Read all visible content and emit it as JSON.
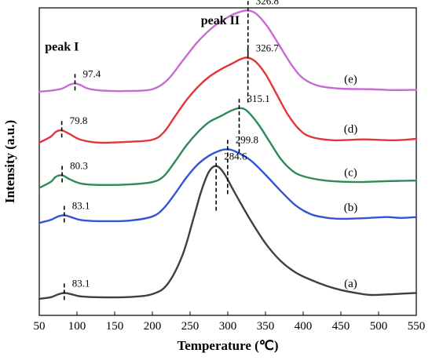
{
  "chart_data": {
    "type": "line",
    "xlabel": "Temperature (℃)",
    "ylabel": "Intensity (a.u.)",
    "xlim": [
      50,
      550
    ],
    "xticks": [
      50,
      100,
      150,
      200,
      250,
      300,
      350,
      400,
      450,
      500,
      550
    ],
    "ylim": [
      0,
      100
    ],
    "yticks": false,
    "grid": false,
    "peak_group_labels": [
      {
        "text": "peak I",
        "x": 80,
        "y": 88
      },
      {
        "text": "peak II",
        "x": 290,
        "y": 97
      }
    ],
    "series": [
      {
        "name": "(a)",
        "color": "#3f3f3f",
        "baseline": 4,
        "points": [
          [
            50,
            3
          ],
          [
            65,
            3.5
          ],
          [
            75,
            4.5
          ],
          [
            83.1,
            5
          ],
          [
            92,
            4.6
          ],
          [
            105,
            3.8
          ],
          [
            130,
            3.5
          ],
          [
            170,
            3.6
          ],
          [
            200,
            4.6
          ],
          [
            220,
            8
          ],
          [
            240,
            18
          ],
          [
            255,
            31
          ],
          [
            265,
            40
          ],
          [
            275,
            46.5
          ],
          [
            284.6,
            48.5
          ],
          [
            295,
            46
          ],
          [
            310,
            39
          ],
          [
            330,
            30
          ],
          [
            350,
            22
          ],
          [
            370,
            16
          ],
          [
            390,
            12
          ],
          [
            410,
            9.5
          ],
          [
            430,
            7.5
          ],
          [
            450,
            6
          ],
          [
            470,
            5
          ],
          [
            490,
            4.3
          ],
          [
            520,
            4.6
          ],
          [
            550,
            5
          ]
        ],
        "peaks": [
          {
            "label": "83.1",
            "x": 83.1
          },
          {
            "label": "284.6",
            "x": 284.6
          }
        ]
      },
      {
        "name": "(b)",
        "color": "#3353d6",
        "baseline": 30,
        "points": [
          [
            50,
            29
          ],
          [
            65,
            30
          ],
          [
            75,
            31.2
          ],
          [
            83.1,
            31.6
          ],
          [
            92,
            31
          ],
          [
            105,
            30
          ],
          [
            130,
            29.6
          ],
          [
            170,
            29.8
          ],
          [
            200,
            31.2
          ],
          [
            215,
            34
          ],
          [
            230,
            39
          ],
          [
            245,
            44.5
          ],
          [
            260,
            49
          ],
          [
            275,
            52
          ],
          [
            290,
            53.8
          ],
          [
            299.8,
            54.2
          ],
          [
            310,
            53.5
          ],
          [
            330,
            50.5
          ],
          [
            350,
            45.5
          ],
          [
            370,
            40
          ],
          [
            390,
            35
          ],
          [
            410,
            32
          ],
          [
            430,
            30.8
          ],
          [
            450,
            30.4
          ],
          [
            480,
            30.6
          ],
          [
            510,
            31
          ],
          [
            530,
            30.7
          ],
          [
            550,
            31
          ]
        ],
        "peaks": [
          {
            "label": "83.1",
            "x": 83.1
          },
          {
            "label": "299.8",
            "x": 299.8
          }
        ]
      },
      {
        "name": "(c)",
        "color": "#2e8a58",
        "baseline": 42,
        "points": [
          [
            50,
            41
          ],
          [
            65,
            43
          ],
          [
            72,
            44.8
          ],
          [
            80.3,
            45.3
          ],
          [
            90,
            44
          ],
          [
            105,
            42.5
          ],
          [
            130,
            42
          ],
          [
            170,
            42.2
          ],
          [
            200,
            43
          ],
          [
            215,
            45
          ],
          [
            230,
            50
          ],
          [
            245,
            55.5
          ],
          [
            260,
            60
          ],
          [
            275,
            63.5
          ],
          [
            290,
            65.5
          ],
          [
            305,
            67.5
          ],
          [
            315.1,
            68.3
          ],
          [
            325,
            67.5
          ],
          [
            340,
            63
          ],
          [
            355,
            57
          ],
          [
            370,
            51
          ],
          [
            385,
            47
          ],
          [
            400,
            45
          ],
          [
            430,
            43.5
          ],
          [
            470,
            43
          ],
          [
            510,
            43.3
          ],
          [
            550,
            43.5
          ]
        ],
        "peaks": [
          {
            "label": "80.3",
            "x": 80.3
          },
          {
            "label": "315.1",
            "x": 315.1
          }
        ]
      },
      {
        "name": "(d)",
        "color": "#e3333b",
        "baseline": 57,
        "points": [
          [
            50,
            56.5
          ],
          [
            65,
            58.5
          ],
          [
            72,
            60.2
          ],
          [
            79.8,
            60.7
          ],
          [
            90,
            59.5
          ],
          [
            105,
            57.5
          ],
          [
            130,
            56.5
          ],
          [
            170,
            56.8
          ],
          [
            200,
            57.5
          ],
          [
            215,
            60
          ],
          [
            230,
            65.5
          ],
          [
            245,
            71
          ],
          [
            260,
            75.5
          ],
          [
            275,
            79
          ],
          [
            290,
            81.5
          ],
          [
            305,
            83.5
          ],
          [
            318,
            85.2
          ],
          [
            326.7,
            85.6
          ],
          [
            337,
            84.2
          ],
          [
            350,
            80
          ],
          [
            365,
            73
          ],
          [
            380,
            66
          ],
          [
            395,
            61
          ],
          [
            410,
            58.5
          ],
          [
            440,
            57.3
          ],
          [
            480,
            57.6
          ],
          [
            520,
            57.3
          ],
          [
            550,
            57.8
          ]
        ],
        "peaks": [
          {
            "label": "79.8",
            "x": 79.8
          },
          {
            "label": "326.7",
            "x": 326.7
          }
        ]
      },
      {
        "name": "(e)",
        "color": "#c76ad4",
        "baseline": 74,
        "points": [
          [
            50,
            74
          ],
          [
            65,
            74.3
          ],
          [
            80,
            75
          ],
          [
            90,
            76.3
          ],
          [
            97.4,
            76.8
          ],
          [
            105,
            76.2
          ],
          [
            115,
            75
          ],
          [
            135,
            74.3
          ],
          [
            170,
            74.2
          ],
          [
            200,
            74.8
          ],
          [
            220,
            78
          ],
          [
            240,
            84.5
          ],
          [
            260,
            91
          ],
          [
            280,
            96
          ],
          [
            300,
            99.5
          ],
          [
            315,
            101.2
          ],
          [
            326.8,
            101.8
          ],
          [
            338,
            100.6
          ],
          [
            352,
            96.5
          ],
          [
            368,
            90
          ],
          [
            385,
            83
          ],
          [
            400,
            78.5
          ],
          [
            420,
            76
          ],
          [
            450,
            75
          ],
          [
            490,
            74.8
          ],
          [
            520,
            74.5
          ],
          [
            550,
            74.6
          ]
        ],
        "peaks": [
          {
            "label": "97.4",
            "x": 97.4
          },
          {
            "label": "326.8",
            "x": 326.8
          }
        ]
      }
    ]
  }
}
